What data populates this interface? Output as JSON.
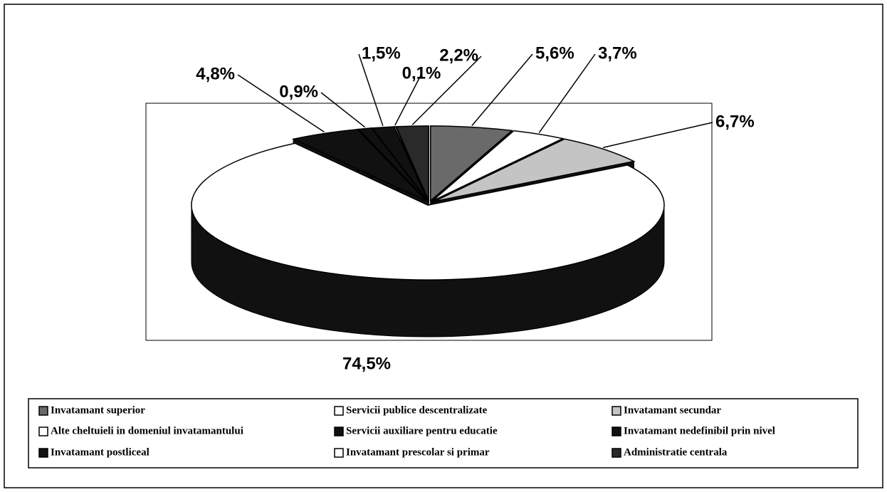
{
  "chart_data": {
    "type": "pie",
    "categories": [
      "Invatamant superior",
      "Servicii publice descentralizate",
      "Invatamant secundar",
      "Alte cheltuieli in domeniul invatamantului",
      "Servicii auxiliare pentru educatie",
      "Invatamant nedefinibil prin nivel",
      "Invatamant postliceal",
      "Invatamant prescolar si primar",
      "Administratie centrala"
    ],
    "values": [
      5.6,
      3.7,
      6.7,
      74.5,
      4.8,
      0.9,
      1.5,
      0.1,
      2.2
    ],
    "value_labels": [
      "5,6%",
      "3,7%",
      "6,7%",
      "74,5%",
      "4,8%",
      "0,9%",
      "1,5%",
      "0,1%",
      "2,2%"
    ],
    "colors": [
      "#6a6a6a",
      "#ffffff",
      "#c4c4c4",
      "#ffffff",
      "#111111",
      "#111111",
      "#111111",
      "#ffffff",
      "#2a2a2a"
    ],
    "legend": "bottom"
  }
}
